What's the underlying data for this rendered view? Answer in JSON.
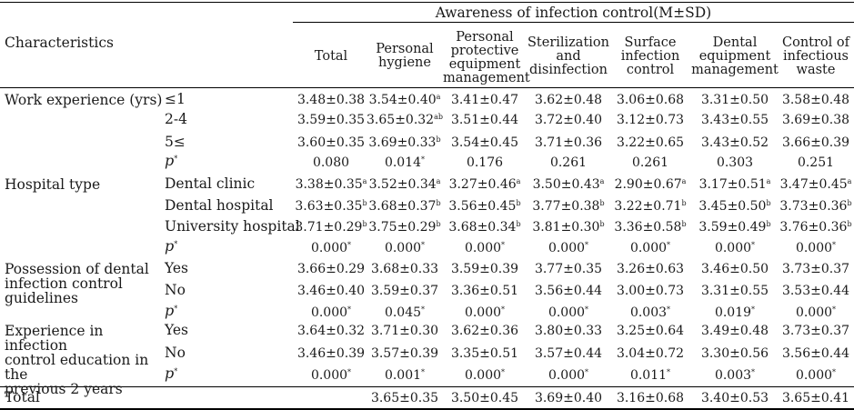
{
  "header": {
    "group_title": "Awareness of infection control(M±SD)",
    "characteristics": "Characteristics",
    "columns": [
      [
        "Total"
      ],
      [
        "Personal",
        "hygiene"
      ],
      [
        "Personal",
        "protective",
        "equipment",
        "management"
      ],
      [
        "Sterilization",
        "and",
        "disinfection"
      ],
      [
        "Surface",
        "infection",
        "control"
      ],
      [
        "Dental",
        "equipment",
        "management"
      ],
      [
        "Control of",
        "infectious",
        "waste"
      ]
    ]
  },
  "groups": [
    {
      "label": [
        "Work experience (yrs)"
      ],
      "rows": [
        {
          "label": "≤1",
          "values": [
            [
              "3.48±0.38",
              ""
            ],
            [
              "3.54±0.40",
              "a"
            ],
            [
              "3.41±0.47",
              ""
            ],
            [
              "3.62±0.48",
              ""
            ],
            [
              "3.06±0.68",
              ""
            ],
            [
              "3.31±0.50",
              ""
            ],
            [
              "3.58±0.48",
              ""
            ]
          ]
        },
        {
          "label": "2-4",
          "values": [
            [
              "3.59±0.35",
              ""
            ],
            [
              "3.65±0.32",
              "ab"
            ],
            [
              "3.51±0.44",
              ""
            ],
            [
              "3.72±0.40",
              ""
            ],
            [
              "3.12±0.73",
              ""
            ],
            [
              "3.43±0.55",
              ""
            ],
            [
              "3.69±0.38",
              ""
            ]
          ]
        },
        {
          "label": "5≤",
          "values": [
            [
              "3.60±0.35",
              ""
            ],
            [
              "3.69±0.33",
              "b"
            ],
            [
              "3.54±0.45",
              ""
            ],
            [
              "3.71±0.36",
              ""
            ],
            [
              "3.22±0.65",
              ""
            ],
            [
              "3.43±0.52",
              ""
            ],
            [
              "3.66±0.39",
              ""
            ]
          ]
        },
        {
          "label": "p",
          "label_sup": "*",
          "values": [
            [
              "0.080",
              ""
            ],
            [
              "0.014",
              "*"
            ],
            [
              "0.176",
              ""
            ],
            [
              "0.261",
              ""
            ],
            [
              "0.261",
              ""
            ],
            [
              "0.303",
              ""
            ],
            [
              "0.251",
              ""
            ]
          ]
        }
      ]
    },
    {
      "label": [
        "Hospital type"
      ],
      "rows": [
        {
          "label": "Dental clinic",
          "values": [
            [
              "3.38±0.35",
              "a"
            ],
            [
              "3.52±0.34",
              "a"
            ],
            [
              "3.27±0.46",
              "a"
            ],
            [
              "3.50±0.43",
              "a"
            ],
            [
              "2.90±0.67",
              "a"
            ],
            [
              "3.17±0.51",
              "a"
            ],
            [
              "3.47±0.45",
              "a"
            ]
          ]
        },
        {
          "label": "Dental hospital",
          "values": [
            [
              "3.63±0.35",
              "b"
            ],
            [
              "3.68±0.37",
              "b"
            ],
            [
              "3.56±0.45",
              "b"
            ],
            [
              "3.77±0.38",
              "b"
            ],
            [
              "3.22±0.71",
              "b"
            ],
            [
              "3.45±0.50",
              "b"
            ],
            [
              "3.73±0.36",
              "b"
            ]
          ]
        },
        {
          "label": "University hospital",
          "values": [
            [
              "3.71±0.29",
              "b"
            ],
            [
              "3.75±0.29",
              "b"
            ],
            [
              "3.68±0.34",
              "b"
            ],
            [
              "3.81±0.30",
              "b"
            ],
            [
              "3.36±0.58",
              "b"
            ],
            [
              "3.59±0.49",
              "b"
            ],
            [
              "3.76±0.36",
              "b"
            ]
          ]
        },
        {
          "label": "p",
          "label_sup": "*",
          "values": [
            [
              "0.000",
              "*"
            ],
            [
              "0.000",
              "*"
            ],
            [
              "0.000",
              "*"
            ],
            [
              "0.000",
              "*"
            ],
            [
              "0.000",
              "*"
            ],
            [
              "0.000",
              "*"
            ],
            [
              "0.000",
              "*"
            ]
          ]
        }
      ]
    },
    {
      "label": [
        "Possession of dental",
        "infection control",
        "guidelines"
      ],
      "rows": [
        {
          "label": "Yes",
          "values": [
            [
              "3.66±0.29",
              ""
            ],
            [
              "3.68±0.33",
              ""
            ],
            [
              "3.59±0.39",
              ""
            ],
            [
              "3.77±0.35",
              ""
            ],
            [
              "3.26±0.63",
              ""
            ],
            [
              "3.46±0.50",
              ""
            ],
            [
              "3.73±0.37",
              ""
            ]
          ]
        },
        {
          "label": "No",
          "values": [
            [
              "3.46±0.40",
              ""
            ],
            [
              "3.59±0.37",
              ""
            ],
            [
              "3.36±0.51",
              ""
            ],
            [
              "3.56±0.44",
              ""
            ],
            [
              "3.00±0.73",
              ""
            ],
            [
              "3.31±0.55",
              ""
            ],
            [
              "3.53±0.44",
              ""
            ]
          ]
        },
        {
          "label": "p",
          "label_sup": "*",
          "values": [
            [
              "0.000",
              "*"
            ],
            [
              "0.045",
              "*"
            ],
            [
              "0.000",
              "*"
            ],
            [
              "0.000",
              "*"
            ],
            [
              "0.003",
              "*"
            ],
            [
              "0.019",
              "*"
            ],
            [
              "0.000",
              "*"
            ]
          ]
        }
      ]
    },
    {
      "label": [
        "Experience in infection",
        "control education in the",
        "previous 2 years"
      ],
      "rows": [
        {
          "label": "Yes",
          "values": [
            [
              "3.64±0.32",
              ""
            ],
            [
              "3.71±0.30",
              ""
            ],
            [
              "3.62±0.36",
              ""
            ],
            [
              "3.80±0.33",
              ""
            ],
            [
              "3.25±0.64",
              ""
            ],
            [
              "3.49±0.48",
              ""
            ],
            [
              "3.73±0.37",
              ""
            ]
          ]
        },
        {
          "label": "No",
          "values": [
            [
              "3.46±0.39",
              ""
            ],
            [
              "3.57±0.39",
              ""
            ],
            [
              "3.35±0.51",
              ""
            ],
            [
              "3.57±0.44",
              ""
            ],
            [
              "3.04±0.72",
              ""
            ],
            [
              "3.30±0.56",
              ""
            ],
            [
              "3.56±0.44",
              ""
            ]
          ]
        },
        {
          "label": "p",
          "label_sup": "*",
          "values": [
            [
              "0.000",
              "*"
            ],
            [
              "0.001",
              "*"
            ],
            [
              "0.000",
              "*"
            ],
            [
              "0.000",
              "*"
            ],
            [
              "0.011",
              "*"
            ],
            [
              "0.003",
              "*"
            ],
            [
              "0.000",
              "*"
            ]
          ]
        }
      ]
    }
  ],
  "total_row": {
    "label": "Total",
    "values": [
      [
        "",
        ""
      ],
      [
        "3.65±0.35",
        ""
      ],
      [
        "3.50±0.45",
        ""
      ],
      [
        "3.69±0.40",
        ""
      ],
      [
        "3.16±0.68",
        ""
      ],
      [
        "3.40±0.53",
        ""
      ],
      [
        "3.65±0.41",
        ""
      ]
    ]
  }
}
